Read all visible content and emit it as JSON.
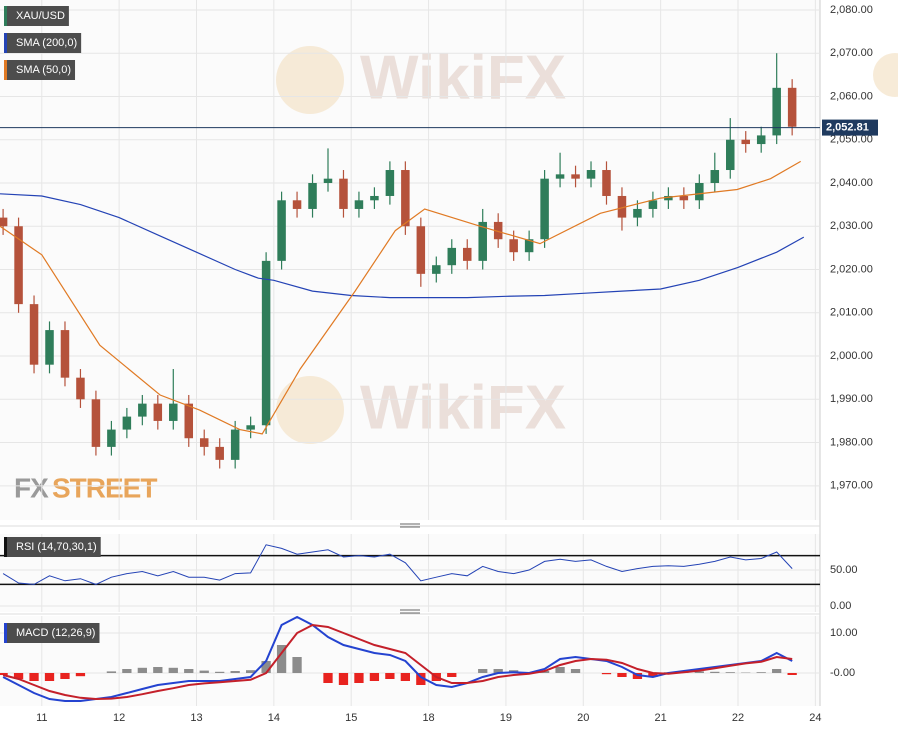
{
  "watermark": "WikiFX",
  "logo": [
    "FX",
    "STREET"
  ],
  "chart_data": [
    {
      "type": "candlestick",
      "name": "XAU/USD",
      "x": [
        -0.5,
        -0.3,
        -0.1,
        0.1,
        0.3,
        0.5,
        0.7,
        0.9,
        1.1,
        1.3,
        1.5,
        1.7,
        1.9,
        2.1,
        2.3,
        2.5,
        2.7,
        2.9,
        3.1,
        3.3,
        3.5,
        3.7,
        3.9,
        4.1,
        4.3,
        4.5,
        4.7,
        4.9,
        5.1,
        5.3,
        5.5,
        5.7,
        5.9,
        6.1,
        6.3,
        6.5,
        6.7,
        6.9,
        7.1,
        7.3,
        7.5,
        7.7,
        7.9,
        8.1,
        8.3,
        8.5,
        8.7,
        8.9,
        9.1,
        9.3,
        9.5,
        9.7
      ],
      "open": [
        2032,
        2030,
        2012,
        1998,
        2006,
        1995,
        1990,
        1979,
        1983,
        1986,
        1989,
        1985,
        1989,
        1981,
        1979,
        1976,
        1983,
        1984,
        2022,
        2036,
        2034,
        2040,
        2041,
        2034,
        2036,
        2037,
        2043,
        2030,
        2019,
        2021,
        2025,
        2022,
        2031,
        2027,
        2024,
        2027,
        2041,
        2042,
        2041,
        2043,
        2037,
        2032,
        2034,
        2036,
        2037,
        2036,
        2040,
        2043,
        2050,
        2049,
        2051,
        2062
      ],
      "high": [
        2034,
        2032,
        2014,
        2008,
        2008,
        1997,
        1992,
        1985,
        1988,
        1991,
        1991,
        1997,
        1991,
        1983,
        1981,
        1985,
        1986,
        2024,
        2038,
        2038,
        2042,
        2048,
        2043,
        2038,
        2039,
        2045,
        2045,
        2032,
        2023,
        2027,
        2027,
        2034,
        2033,
        2029,
        2029,
        2043,
        2047,
        2044,
        2045,
        2045,
        2039,
        2036,
        2038,
        2039,
        2039,
        2042,
        2047,
        2055,
        2052,
        2053,
        2070,
        2064
      ],
      "low": [
        2028,
        2010,
        1996,
        1996,
        1993,
        1988,
        1977,
        1977,
        1981,
        1984,
        1983,
        1983,
        1979,
        1977,
        1974,
        1974,
        1981,
        1982,
        2020,
        2032,
        2032,
        2038,
        2032,
        2032,
        2034,
        2035,
        2028,
        2016,
        2017,
        2019,
        2020,
        2020,
        2025,
        2022,
        2022,
        2025,
        2039,
        2039,
        2039,
        2035,
        2029,
        2030,
        2032,
        2034,
        2034,
        2034,
        2038,
        2041,
        2047,
        2047,
        2049,
        2051
      ],
      "close": [
        2030,
        2012,
        1998,
        2006,
        1995,
        1990,
        1979,
        1983,
        1986,
        1989,
        1985,
        1989,
        1981,
        1979,
        1976,
        1983,
        1984,
        2022,
        2036,
        2034,
        2040,
        2041,
        2034,
        2036,
        2037,
        2043,
        2030,
        2019,
        2021,
        2025,
        2022,
        2031,
        2027,
        2024,
        2027,
        2041,
        2042,
        2041,
        2043,
        2037,
        2032,
        2034,
        2036,
        2037,
        2036,
        2040,
        2043,
        2050,
        2049,
        2051,
        2062,
        2053
      ],
      "up_color": "#2f7d5a",
      "down_color": "#b5523b",
      "overlays": [
        {
          "name": "SMA (200,0)",
          "color": "#2443b5",
          "x": [
            -0.54,
            0,
            0.5,
            1,
            1.5,
            2,
            2.5,
            2.8,
            3,
            3.5,
            4,
            4.5,
            5,
            5.5,
            6,
            6.5,
            7,
            7.5,
            8,
            8.5,
            9,
            9.5,
            9.85
          ],
          "values": [
            2037.5,
            2037,
            2035,
            2032,
            2028,
            2024,
            2020,
            2018,
            2017.5,
            2015,
            2014,
            2013.5,
            2013.5,
            2013.5,
            2013.8,
            2014,
            2014.5,
            2015,
            2015.5,
            2017.5,
            2020.5,
            2024,
            2027.5
          ]
        },
        {
          "name": "SMA (50,0)",
          "color": "#e07a24",
          "x": [
            -0.54,
            0,
            0.75,
            1.53,
            2.04,
            2.56,
            2.85,
            3.34,
            4.05,
            4.57,
            4.95,
            5.67,
            6.44,
            7.22,
            8,
            8.99,
            9.42,
            9.81
          ],
          "values": [
            2030,
            2023.4,
            2002.5,
            1991,
            1987.5,
            1983,
            1982,
            1997,
            2015,
            2029,
            2034,
            2030,
            2026,
            2033,
            2036.5,
            2038.5,
            2041,
            2045
          ]
        }
      ],
      "last_price": {
        "value": 2052.81,
        "label": "2,052.81"
      },
      "ylim": [
        1962.1,
        2082.3
      ],
      "yticks": [
        {
          "value": 2080,
          "label": "2,080.00"
        },
        {
          "value": 2070,
          "label": "2,070.00"
        },
        {
          "value": 2060,
          "label": "2,060.00"
        },
        {
          "value": 2050,
          "label": "2,050.00"
        },
        {
          "value": 2040,
          "label": "2,040.00"
        },
        {
          "value": 2030,
          "label": "2,030.00"
        },
        {
          "value": 2020,
          "label": "2,020.00"
        },
        {
          "value": 2010,
          "label": "2,010.00"
        },
        {
          "value": 2000,
          "label": "2,000.00"
        },
        {
          "value": 1990,
          "label": "1,990.00"
        },
        {
          "value": 1980,
          "label": "1,980.00"
        },
        {
          "value": 1970,
          "label": "1,970.00"
        }
      ],
      "xlim": [
        -0.54,
        10.06
      ],
      "xticks": [
        {
          "value": 0,
          "label": "11"
        },
        {
          "value": 1,
          "label": "12"
        },
        {
          "value": 2,
          "label": "13"
        },
        {
          "value": 3,
          "label": "14"
        },
        {
          "value": 4,
          "label": "15"
        },
        {
          "value": 5,
          "label": "18"
        },
        {
          "value": 6,
          "label": "19"
        },
        {
          "value": 7,
          "label": "20"
        },
        {
          "value": 8,
          "label": "21"
        },
        {
          "value": 9,
          "label": "22"
        },
        {
          "value": 10,
          "label": "24"
        }
      ],
      "grid": true,
      "legend_position": "upper left"
    },
    {
      "type": "rsi",
      "title": "RSI (14,70,30,1)",
      "color": "#2443b5",
      "x": [
        -0.5,
        -0.3,
        -0.1,
        0.1,
        0.3,
        0.5,
        0.7,
        0.9,
        1.1,
        1.3,
        1.5,
        1.7,
        1.9,
        2.1,
        2.3,
        2.5,
        2.7,
        2.9,
        3.1,
        3.3,
        3.5,
        3.7,
        3.9,
        4.1,
        4.3,
        4.5,
        4.7,
        4.9,
        5.1,
        5.3,
        5.5,
        5.7,
        5.9,
        6.1,
        6.3,
        6.5,
        6.7,
        6.9,
        7.1,
        7.3,
        7.5,
        7.7,
        7.9,
        8.1,
        8.3,
        8.5,
        8.7,
        8.9,
        9.1,
        9.3,
        9.5,
        9.7
      ],
      "values": [
        45,
        32,
        30,
        42,
        35,
        38,
        30,
        40,
        45,
        48,
        42,
        48,
        40,
        40,
        36,
        45,
        46,
        85,
        80,
        72,
        75,
        78,
        68,
        70,
        68,
        72,
        60,
        35,
        40,
        45,
        42,
        55,
        48,
        45,
        50,
        62,
        65,
        62,
        64,
        55,
        48,
        52,
        55,
        56,
        55,
        58,
        62,
        68,
        64,
        66,
        75,
        52
      ],
      "levels": [
        70,
        30
      ],
      "ylim": [
        -8.3,
        100
      ],
      "yticks": [
        {
          "value": 50,
          "label": "50.00"
        },
        {
          "value": 0,
          "label": "0.00"
        }
      ]
    },
    {
      "type": "macd",
      "title": "MACD (12,26,9)",
      "x": [
        -0.5,
        -0.3,
        -0.1,
        0.1,
        0.3,
        0.5,
        0.7,
        0.9,
        1.1,
        1.3,
        1.5,
        1.7,
        1.9,
        2.1,
        2.3,
        2.5,
        2.7,
        2.9,
        3.1,
        3.3,
        3.5,
        3.7,
        3.9,
        4.1,
        4.3,
        4.5,
        4.7,
        4.9,
        5.1,
        5.3,
        5.5,
        5.7,
        5.9,
        6.1,
        6.3,
        6.5,
        6.7,
        6.9,
        7.1,
        7.3,
        7.5,
        7.7,
        7.9,
        8.1,
        8.3,
        8.5,
        8.7,
        8.9,
        9.1,
        9.3,
        9.5,
        9.7
      ],
      "series": [
        {
          "color": "#2443d0",
          "values": [
            -1,
            -3,
            -5,
            -6.5,
            -7,
            -7,
            -6.5,
            -6,
            -5,
            -4,
            -3,
            -2.5,
            -2,
            -2,
            -2,
            -1.5,
            -1,
            3,
            12,
            14,
            12,
            9,
            7,
            6,
            5,
            4.5,
            3,
            -1,
            -3,
            -3.5,
            -2.5,
            -1,
            0,
            0.2,
            0,
            1,
            3.5,
            4,
            3.5,
            3,
            1.5,
            -0.5,
            -1,
            0,
            0.5,
            1,
            1.5,
            2,
            2.5,
            3,
            5,
            3
          ]
        },
        {
          "color": "#c4202a",
          "values": [
            -0.5,
            -1.5,
            -3,
            -4.5,
            -5.5,
            -6.2,
            -6.5,
            -6.4,
            -6,
            -5.3,
            -4.5,
            -3.8,
            -3,
            -2.6,
            -2.3,
            -2,
            -1.7,
            0,
            5,
            10,
            12,
            11.5,
            10,
            8.5,
            7,
            6,
            5,
            2,
            -1,
            -2.5,
            -2.5,
            -2,
            -1,
            -0.5,
            -0.2,
            0.5,
            2,
            3,
            3.5,
            3.3,
            2.5,
            1,
            0,
            -0.2,
            0.2,
            0.6,
            1.2,
            1.8,
            2.4,
            2.8,
            4,
            3.5
          ]
        }
      ],
      "histogram": {
        "up_color": "#8c8c8c",
        "down_color": "#e8231f",
        "values": [
          -0.5,
          -1.5,
          -2,
          -2,
          -1.5,
          -0.8,
          0,
          0.4,
          1,
          1.3,
          1.5,
          1.3,
          1,
          0.6,
          0.3,
          0.5,
          0.7,
          3,
          7,
          4,
          0,
          -2.5,
          -3,
          -2.5,
          -2,
          -1.5,
          -2,
          -3,
          -2,
          -1,
          0,
          1,
          1,
          0.7,
          0.2,
          0.5,
          1.5,
          1,
          0,
          -0.3,
          -1,
          -1.5,
          -1,
          0.2,
          0.3,
          0.4,
          0.3,
          0.2,
          0.1,
          0.2,
          1,
          -0.5
        ]
      },
      "ylim": [
        -8.25,
        14.25
      ],
      "yticks": [
        {
          "value": 10,
          "label": "10.00"
        },
        {
          "value": 0,
          "label": "-0.00"
        }
      ]
    }
  ]
}
